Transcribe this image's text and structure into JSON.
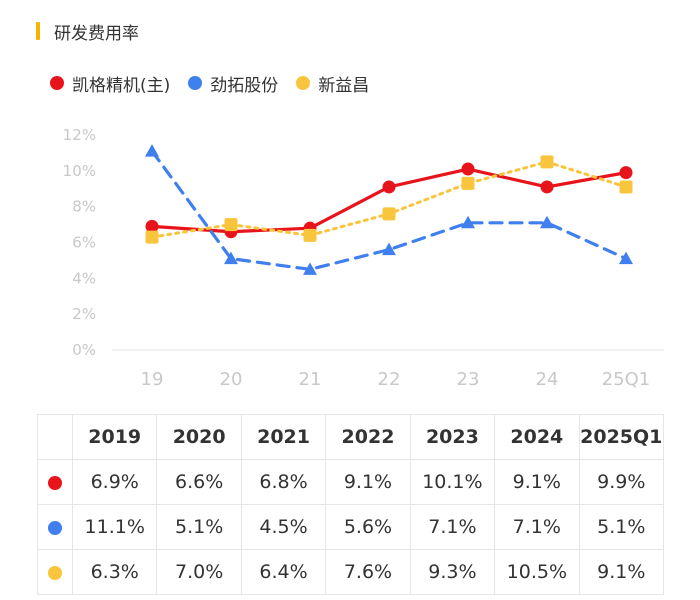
{
  "title": "研发费用率",
  "colors": {
    "accent": "#f5b400",
    "grid": "#e5e5e5",
    "axis_text": "#c8c8c8"
  },
  "chart_data": {
    "type": "line",
    "categories": [
      "19",
      "20",
      "21",
      "22",
      "23",
      "24",
      "25Q1"
    ],
    "yticks": [
      "0%",
      "2%",
      "4%",
      "6%",
      "8%",
      "10%",
      "12%"
    ],
    "ylim": [
      0,
      12
    ],
    "series": [
      {
        "name": "凯格精机(主)",
        "color": "#e8141b",
        "marker": "circle",
        "dash": "solid",
        "values": [
          6.9,
          6.6,
          6.8,
          9.1,
          10.1,
          9.1,
          9.9
        ]
      },
      {
        "name": "劲拓股份",
        "color": "#3f7fee",
        "marker": "triangle",
        "dash": "dashed",
        "values": [
          11.1,
          5.1,
          4.5,
          5.6,
          7.1,
          7.1,
          5.1
        ]
      },
      {
        "name": "新益昌",
        "color": "#f9c53d",
        "marker": "square",
        "dash": "dotted",
        "values": [
          6.3,
          7.0,
          6.4,
          7.6,
          9.3,
          10.5,
          9.1
        ]
      }
    ]
  },
  "table": {
    "headers": [
      "2019",
      "2020",
      "2021",
      "2022",
      "2023",
      "2024",
      "2025Q1"
    ],
    "rows": [
      [
        "6.9%",
        "6.6%",
        "6.8%",
        "9.1%",
        "10.1%",
        "9.1%",
        "9.9%"
      ],
      [
        "11.1%",
        "5.1%",
        "4.5%",
        "5.6%",
        "7.1%",
        "7.1%",
        "5.1%"
      ],
      [
        "6.3%",
        "7.0%",
        "6.4%",
        "7.6%",
        "9.3%",
        "10.5%",
        "9.1%"
      ]
    ]
  }
}
